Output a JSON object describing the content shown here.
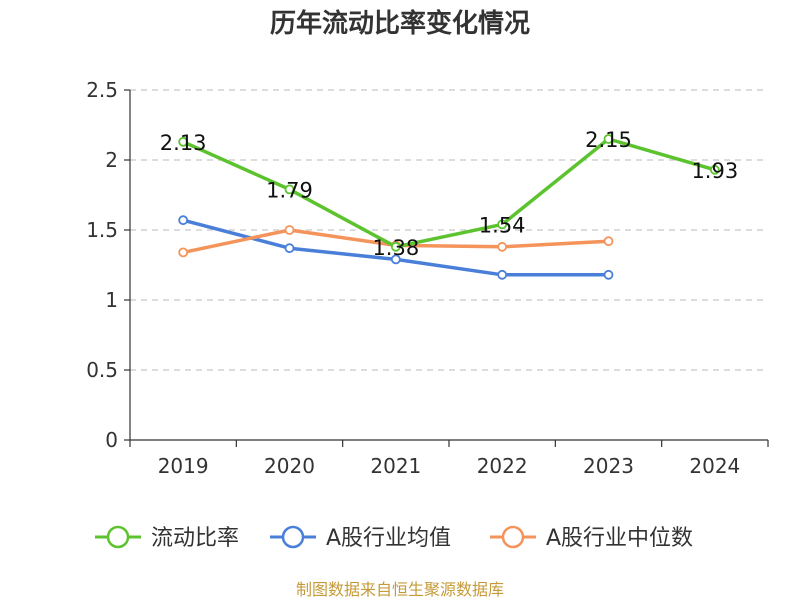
{
  "chart_data": {
    "type": "line",
    "title": "历年流动比率变化情况",
    "categories": [
      "2019",
      "2020",
      "2021",
      "2022",
      "2023",
      "2024"
    ],
    "ylim": [
      0,
      2.5
    ],
    "yticks": [
      "0",
      "0.5",
      "1",
      "1.5",
      "2",
      "2.5"
    ],
    "grid": true,
    "legend_position": "bottom",
    "series": [
      {
        "name": "流动比率",
        "color": "#5cc32f",
        "values": [
          2.13,
          1.79,
          1.38,
          1.54,
          2.15,
          1.93
        ],
        "labels": [
          "2.13",
          "1.79",
          "1.38",
          "1.54",
          "2.15",
          "1.93"
        ]
      },
      {
        "name": "A股行业均值",
        "color": "#4a7fd9",
        "values": [
          1.57,
          1.37,
          1.29,
          1.18,
          1.18,
          null
        ]
      },
      {
        "name": "A股行业中位数",
        "color": "#f4935a",
        "values": [
          1.34,
          1.5,
          1.39,
          1.38,
          1.42,
          null
        ]
      }
    ],
    "source": "制图数据来自恒生聚源数据库"
  }
}
